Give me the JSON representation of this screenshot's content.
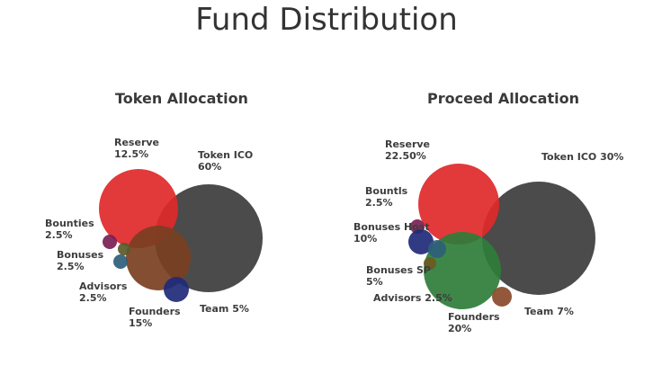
{
  "page": {
    "title": "Fund Distribution"
  },
  "chart_data": [
    {
      "type": "bubble",
      "title": "Token Allocation",
      "items": [
        {
          "name": "Token ICO",
          "value": "60%",
          "color": "#3c3c3c"
        },
        {
          "name": "Reserve",
          "value": "12.5%",
          "color": "#e0282a"
        },
        {
          "name": "Founders",
          "value": "15%",
          "color": "#7a3f22"
        },
        {
          "name": "Team",
          "value": "5%",
          "color": "#1e2a7a"
        },
        {
          "name": "Bounties",
          "value": "2.5%",
          "color": "#7a1f55"
        },
        {
          "name": "Bonuses",
          "value": "2.5%",
          "color": "#2e5e7a"
        },
        {
          "name": "Advisors",
          "value": "2.5%",
          "color": "#5a5a2a"
        }
      ]
    },
    {
      "type": "bubble",
      "title": "Proceed Allocation",
      "items": [
        {
          "name": "Token ICO",
          "value": "30%",
          "color": "#3c3c3c"
        },
        {
          "name": "Reserve",
          "value": "22.50%",
          "color": "#e0282a"
        },
        {
          "name": "Founders",
          "value": "20%",
          "color": "#2e7d3a"
        },
        {
          "name": "Team",
          "value": "7%",
          "color": "#8a4a2a"
        },
        {
          "name": "Bountls",
          "value": "2.5%",
          "color": "#7a1f55"
        },
        {
          "name": "Bonuses Host",
          "value": "10%",
          "color": "#1e2a7a"
        },
        {
          "name": "Bonuses SP",
          "value": "5%",
          "color": "#2e5e7a"
        },
        {
          "name": "Advisors",
          "value": "2.5%",
          "color": "#6a5a22"
        }
      ]
    }
  ]
}
